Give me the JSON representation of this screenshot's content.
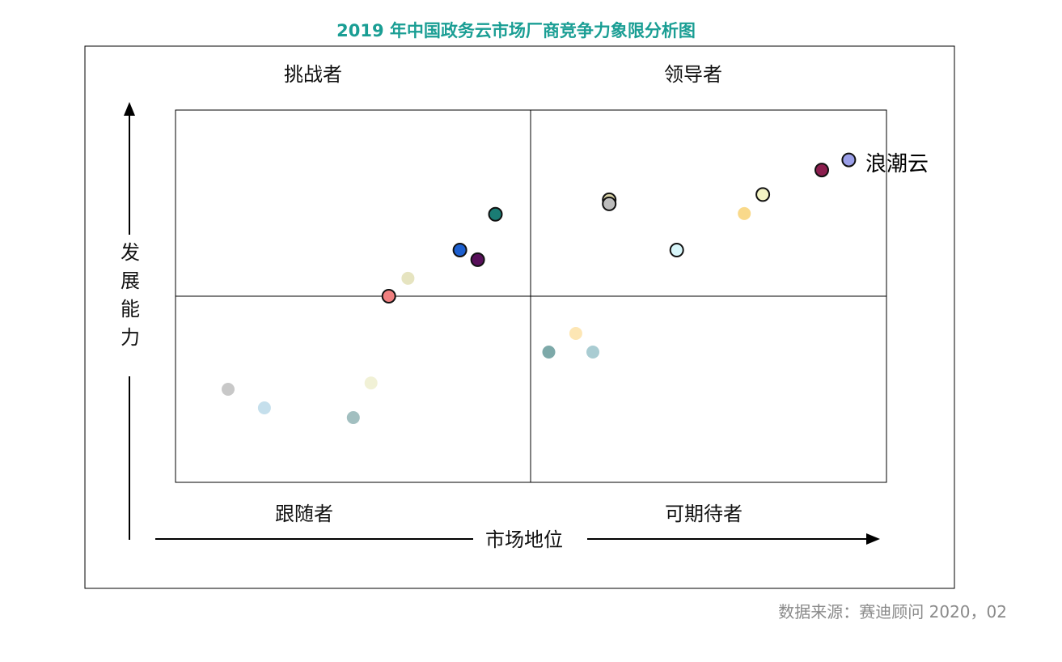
{
  "title": "2019 年中国政务云市场厂商竞争力象限分析图",
  "source": "数据来源：赛迪顾问   2020，02",
  "quadrants": {
    "top_left": "挑战者",
    "top_right": "领导者",
    "bottom_left": "跟随者",
    "bottom_right": "可期待者"
  },
  "x_axis_label": "市场地位",
  "y_axis_label": [
    "发",
    "展",
    "能",
    "力"
  ],
  "highlight_label": "浪潮云",
  "chart_data": {
    "type": "scatter",
    "xlim": [
      0,
      100
    ],
    "ylim": [
      0,
      100
    ],
    "x_axis_label": "市场地位",
    "y_axis_label": "发展能力",
    "quadrant_divider": {
      "x": 50,
      "y": 50
    },
    "grid": false,
    "points": [
      {
        "x": 94.7,
        "y": 86.6,
        "color": "#9b9fe8",
        "faded": false,
        "label": "浪潮云"
      },
      {
        "x": 90.9,
        "y": 83.9,
        "color": "#8b1e4e",
        "faded": false
      },
      {
        "x": 82.6,
        "y": 77.3,
        "color": "#f4f4c4",
        "faded": false
      },
      {
        "x": 80.0,
        "y": 72.2,
        "color": "#f9d98a",
        "faded": true
      },
      {
        "x": 70.5,
        "y": 62.4,
        "color": "#d8f6fa",
        "faded": false
      },
      {
        "x": 61.0,
        "y": 75.9,
        "color": "#d8d2a6",
        "faded": false
      },
      {
        "x": 61.0,
        "y": 74.8,
        "color": "#bdbdbd",
        "faded": false,
        "note": ""
      },
      {
        "x": 45.0,
        "y": 72.0,
        "color": "#1a7c74",
        "faded": false
      },
      {
        "x": 40.0,
        "y": 62.4,
        "color": "#1c5fcf",
        "faded": false
      },
      {
        "x": 42.5,
        "y": 59.8,
        "color": "#58105a",
        "faded": false
      },
      {
        "x": 32.7,
        "y": 54.8,
        "color": "#e6e4c0",
        "faded": true
      },
      {
        "x": 30.0,
        "y": 50.0,
        "color": "#f08080",
        "faded": false
      },
      {
        "x": 52.5,
        "y": 35.0,
        "color": "#7da9a9",
        "faded": true
      },
      {
        "x": 56.3,
        "y": 40.0,
        "color": "#fde6b4",
        "faded": true
      },
      {
        "x": 58.7,
        "y": 35.0,
        "color": "#a9ccd2",
        "faded": true
      },
      {
        "x": 7.4,
        "y": 25.0,
        "color": "#c8c8c8",
        "faded": true
      },
      {
        "x": 12.5,
        "y": 20.0,
        "color": "#c5dfec",
        "faded": true
      },
      {
        "x": 27.5,
        "y": 26.7,
        "color": "#f1f1d6",
        "faded": true
      },
      {
        "x": 25.0,
        "y": 17.4,
        "color": "#a2bfc0",
        "faded": true
      }
    ]
  }
}
